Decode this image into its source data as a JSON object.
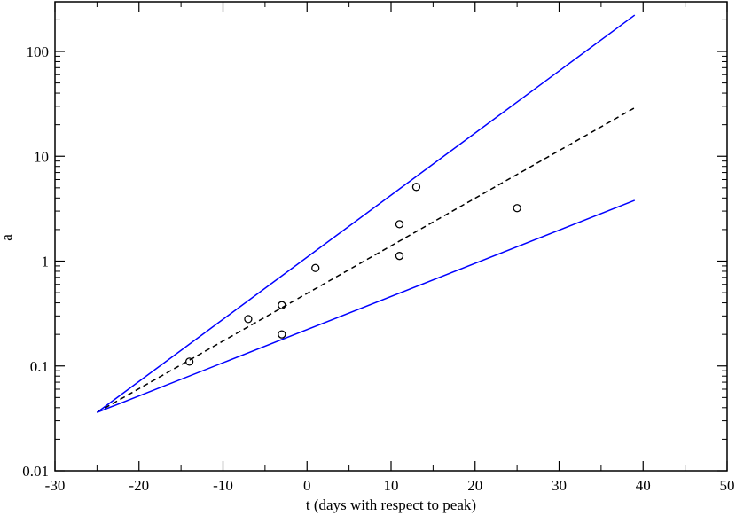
{
  "chart_data": {
    "type": "scatter",
    "title": "",
    "xlabel": "t (days with respect to peak)",
    "ylabel": "a",
    "x_range": [
      -30,
      50
    ],
    "y_range": [
      0.01,
      300
    ],
    "y_scale": "log",
    "grid": false,
    "legend": "none",
    "x_ticks": [
      -30,
      -20,
      -10,
      0,
      10,
      20,
      30,
      40,
      50
    ],
    "y_ticks": [
      {
        "value": 0.01,
        "label": "0.01"
      },
      {
        "value": 0.1,
        "label": "0.1"
      },
      {
        "value": 1,
        "label": "1"
      },
      {
        "value": 10,
        "label": "10"
      },
      {
        "value": 100,
        "label": "100"
      }
    ],
    "points": [
      {
        "x": -14,
        "y": 0.11
      },
      {
        "x": -7,
        "y": 0.28
      },
      {
        "x": -3,
        "y": 0.38
      },
      {
        "x": -3,
        "y": 0.2
      },
      {
        "x": 1,
        "y": 0.86
      },
      {
        "x": 11,
        "y": 2.25
      },
      {
        "x": 11,
        "y": 1.12
      },
      {
        "x": 13,
        "y": 5.1
      },
      {
        "x": 25,
        "y": 3.2
      }
    ],
    "lines": [
      {
        "style": "solid",
        "color": "#0000ff",
        "x": [
          -25,
          39
        ],
        "y": [
          0.036,
          222
        ]
      },
      {
        "style": "dashed",
        "color": "#000000",
        "x": [
          -25,
          39
        ],
        "y": [
          0.036,
          29
        ]
      },
      {
        "style": "solid",
        "color": "#0000ff",
        "x": [
          -25,
          39
        ],
        "y": [
          0.036,
          3.8
        ]
      }
    ]
  }
}
